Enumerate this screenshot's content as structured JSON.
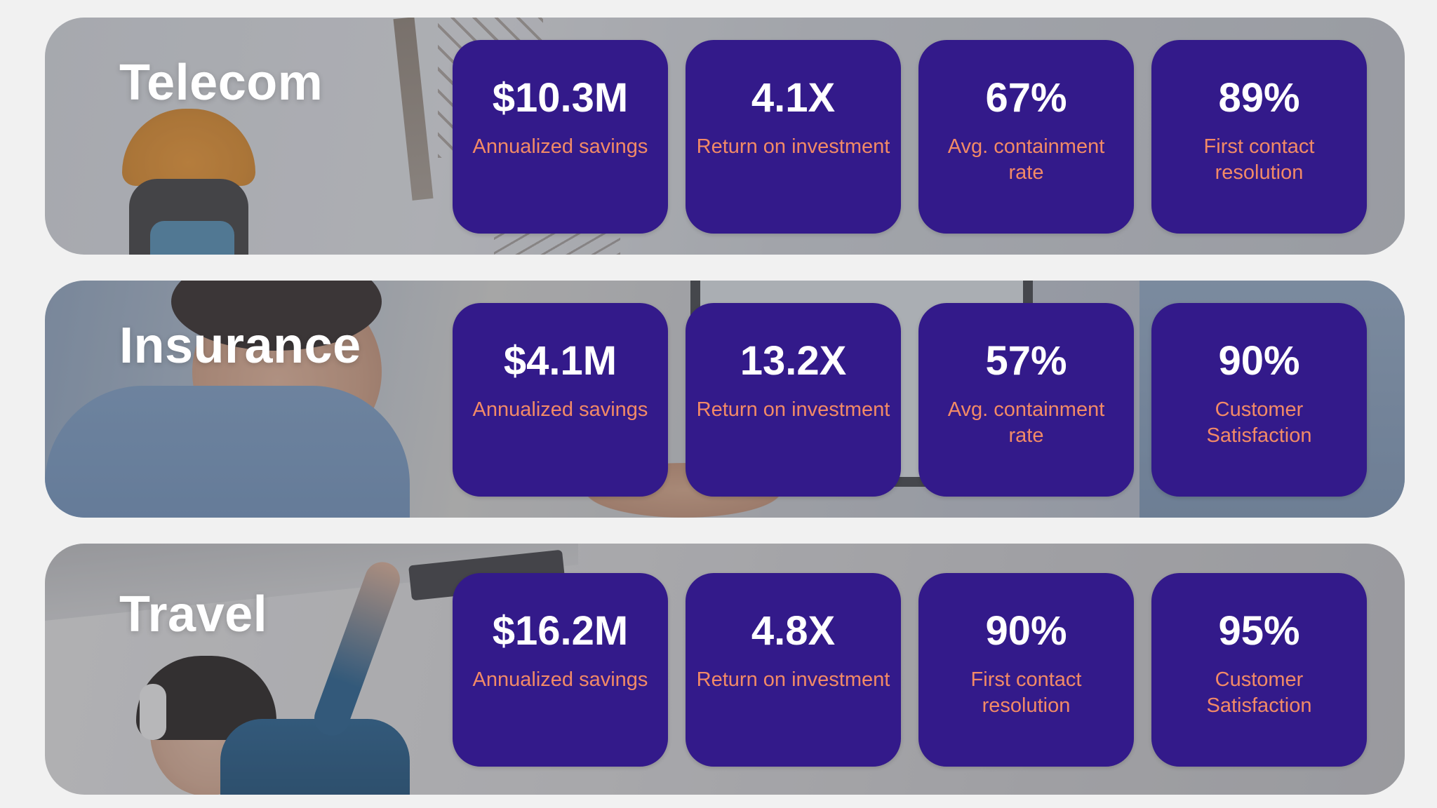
{
  "colors": {
    "page_background": "#f1f1f1",
    "card_background": "#331a8a",
    "value_text": "#ffffff",
    "label_text": "#f28a66",
    "title_text": "#ffffff"
  },
  "sections": [
    {
      "title": "Telecom",
      "photo": "telecom-technician-hard-hat",
      "stats": [
        {
          "value": "$10.3M",
          "label": "Annualized savings"
        },
        {
          "value": "4.1X",
          "label": "Return on investment"
        },
        {
          "value": "67%",
          "label": "Avg. containment rate"
        },
        {
          "value": "89%",
          "label": "First contact resolution"
        }
      ]
    },
    {
      "title": "Insurance",
      "photo": "insurance-agent-handshake",
      "stats": [
        {
          "value": "$4.1M",
          "label": "Annualized savings"
        },
        {
          "value": "13.2X",
          "label": "Return on investment"
        },
        {
          "value": "57%",
          "label": "Avg. containment rate"
        },
        {
          "value": "90%",
          "label": "Customer Satisfaction"
        }
      ]
    },
    {
      "title": "Travel",
      "photo": "travel-passenger-headphones",
      "stats": [
        {
          "value": "$16.2M",
          "label": "Annualized savings"
        },
        {
          "value": "4.8X",
          "label": "Return on investment"
        },
        {
          "value": "90%",
          "label": "First contact resolution"
        },
        {
          "value": "95%",
          "label": "Customer Satisfaction"
        }
      ]
    }
  ]
}
